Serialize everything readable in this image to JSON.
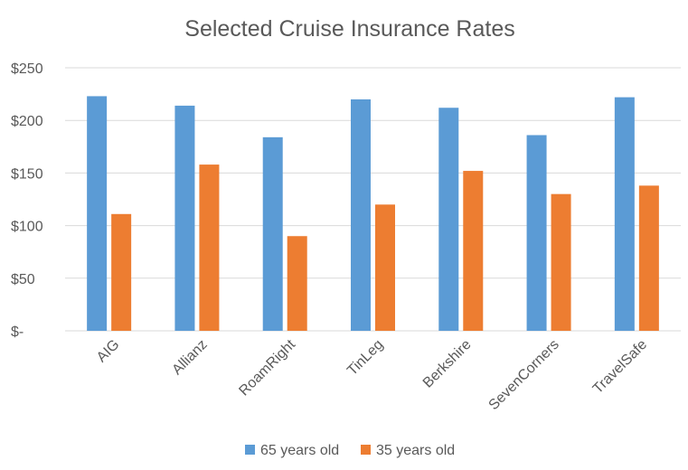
{
  "chart_data": {
    "type": "bar",
    "title": "Selected Cruise Insurance Rates",
    "xlabel": "",
    "ylabel": "",
    "categories": [
      "AIG",
      "Allianz",
      "RoamRight",
      "TinLeg",
      "Berkshire",
      "SevenCorners",
      "TravelSafe"
    ],
    "series": [
      {
        "name": "65 years old",
        "color": "#5b9bd5",
        "values": [
          223,
          214,
          184,
          220,
          212,
          186,
          222
        ]
      },
      {
        "name": "35 years old",
        "color": "#ed7d31",
        "values": [
          111,
          158,
          90,
          120,
          152,
          130,
          138
        ]
      }
    ],
    "ylim": [
      0,
      250
    ],
    "yticks": [
      0,
      50,
      100,
      150,
      200,
      250
    ],
    "ytick_labels": [
      "$-",
      "$50",
      "$100",
      "$150",
      "$200",
      "$250"
    ],
    "grid": true,
    "legend_position": "bottom"
  }
}
